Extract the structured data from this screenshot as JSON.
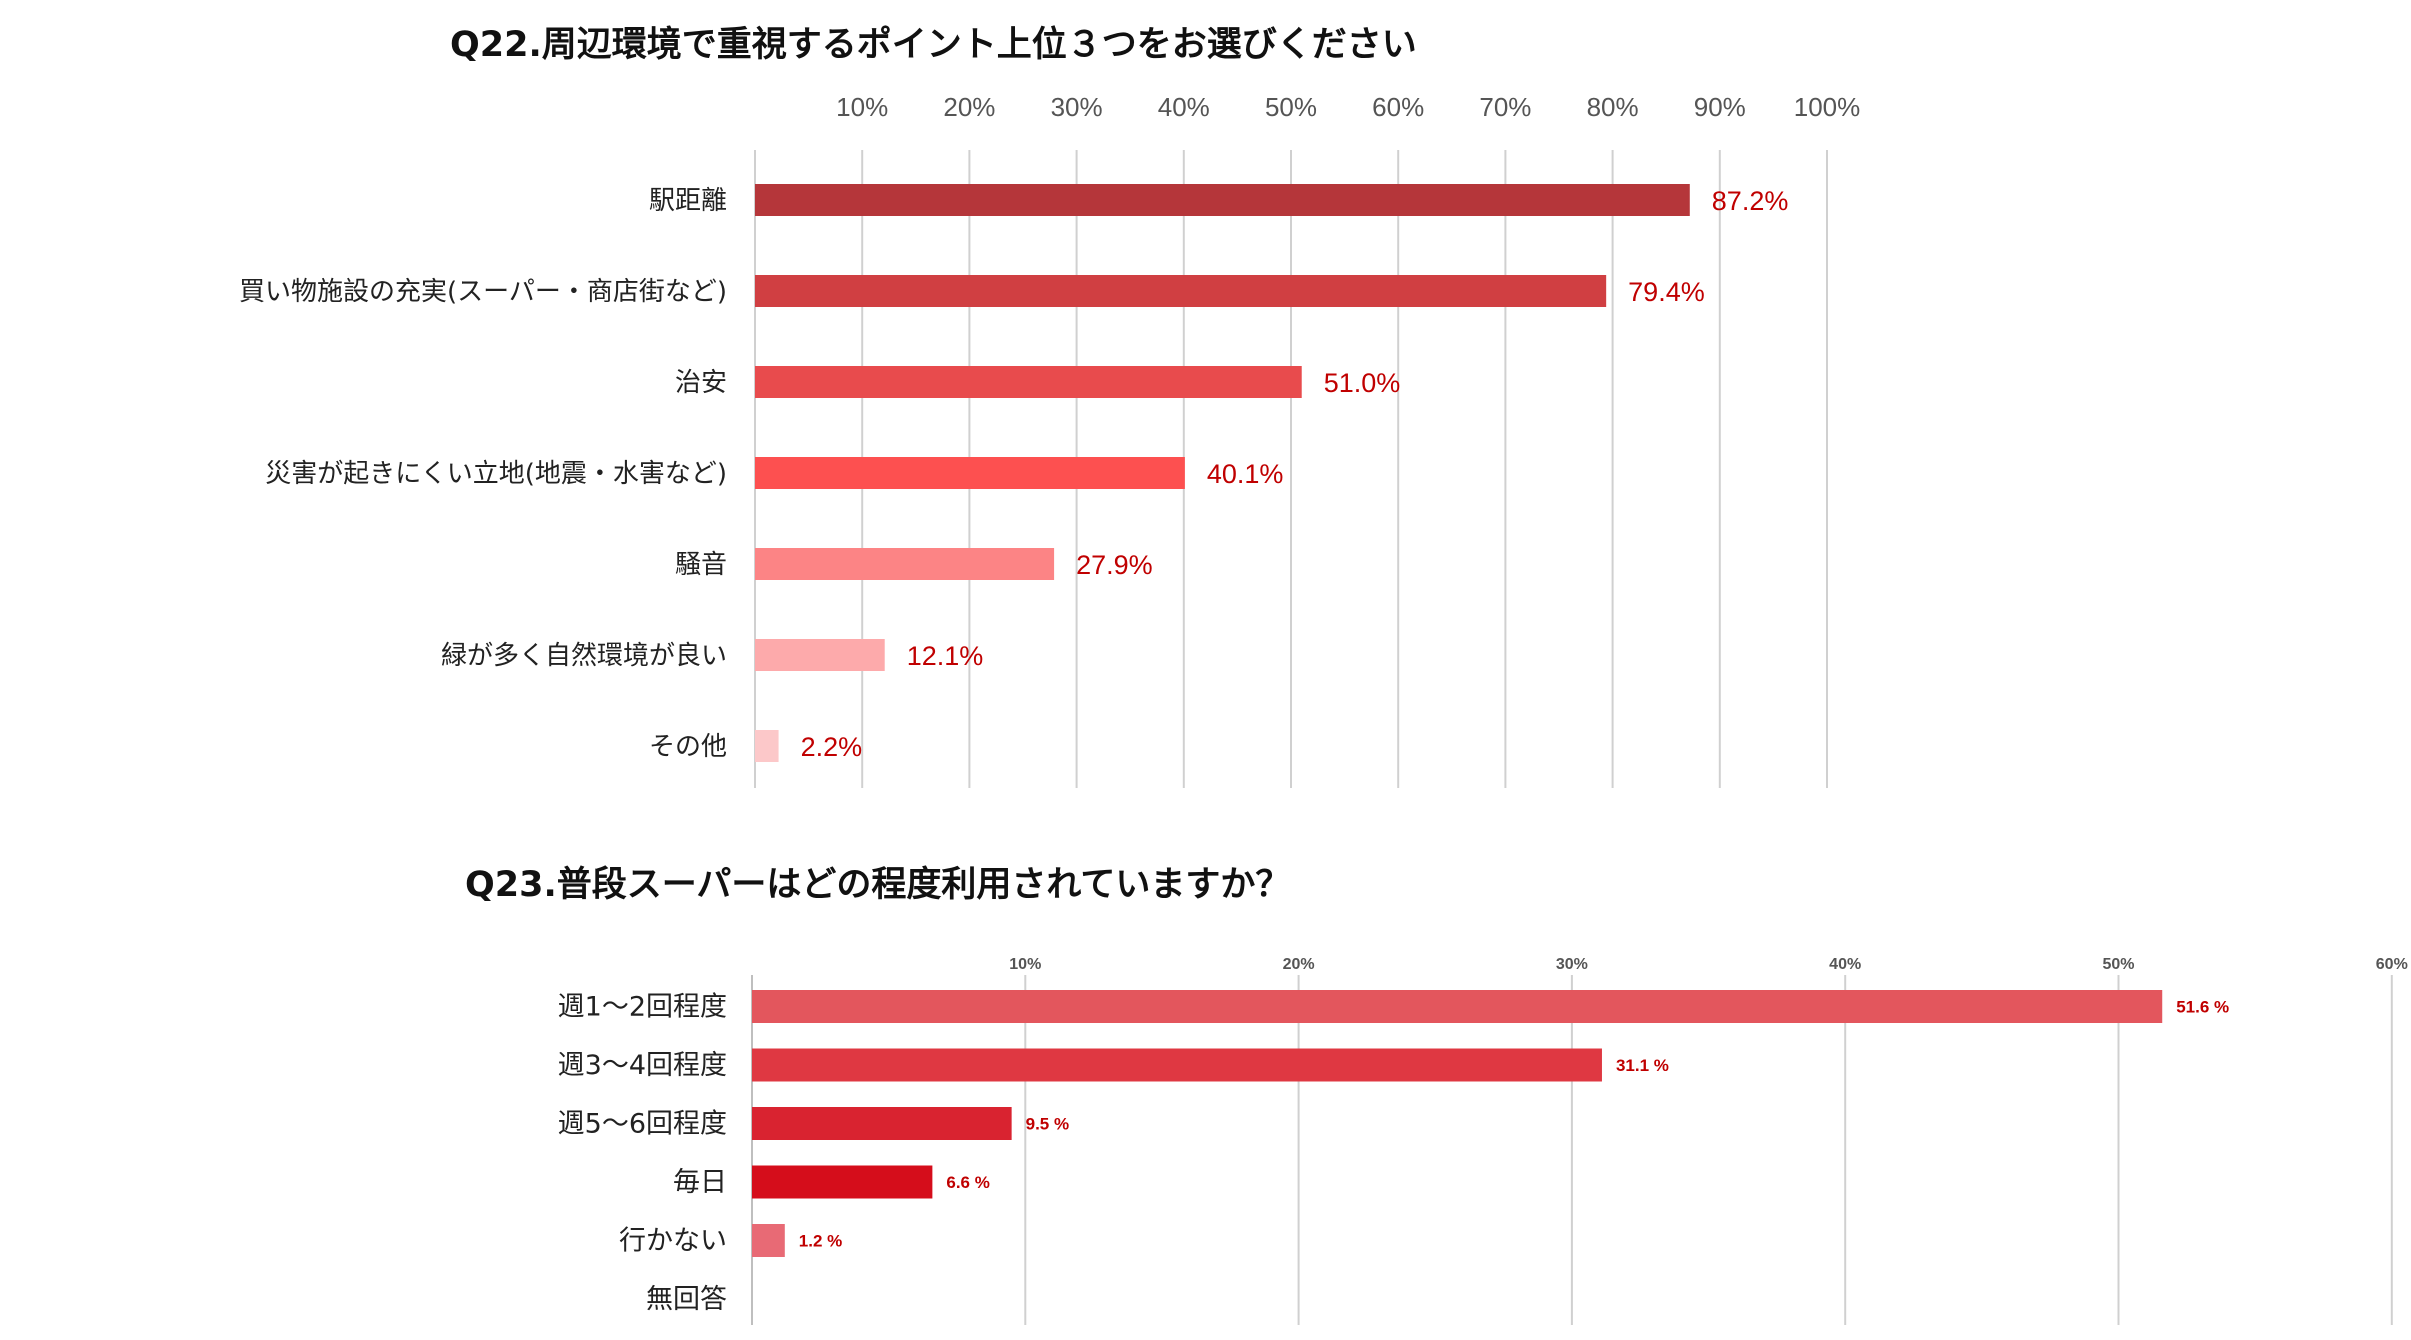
{
  "chart_data": [
    {
      "type": "bar",
      "orientation": "horizontal",
      "title": "Q22.周辺環境で重視するポイント上位３つをお選びください",
      "categories": [
        "駅距離",
        "買い物施設の充実(スーパー・商店街など)",
        "治安",
        "災害が起きにくい立地(地震・水害など)",
        "騒音",
        "緑が多く自然環境が良い",
        "その他"
      ],
      "values": [
        87.2,
        79.4,
        51.0,
        40.1,
        27.9,
        12.1,
        2.2
      ],
      "value_labels": [
        "87.2%",
        "79.4%",
        "51.0%",
        "40.1%",
        "27.9%",
        "12.1%",
        "2.2%"
      ],
      "tick_labels": [
        "10%",
        "20%",
        "30%",
        "40%",
        "50%",
        "60%",
        "70%",
        "80%",
        "90%",
        "100%"
      ],
      "xlim": [
        0,
        100
      ],
      "grid": true,
      "colors": [
        "#b5363a",
        "#d03f42",
        "#e84b4d",
        "#fd5050",
        "#fc8485",
        "#fdaaab",
        "#fcc8c9"
      ]
    },
    {
      "type": "bar",
      "orientation": "horizontal",
      "title": "Q23.普段スーパーはどの程度利用されていますか？",
      "categories": [
        "週1～2回程度",
        "週3～4回程度",
        "週5～6回程度",
        "毎日",
        "行かない",
        "無回答"
      ],
      "values": [
        51.6,
        31.1,
        9.5,
        6.6,
        1.2,
        0
      ],
      "value_labels": [
        "51.6 %",
        "31.1 %",
        "9.5 %",
        "6.6 %",
        "1.2 %",
        ""
      ],
      "tick_labels": [
        "10%",
        "20%",
        "30%",
        "40%",
        "50%",
        "60%"
      ],
      "xlim": [
        0,
        60
      ],
      "grid": true,
      "colors": [
        "#e3565d",
        "#df3842",
        "#d92330",
        "#d50d1b",
        "#e86a75",
        "#e86a75"
      ]
    }
  ]
}
